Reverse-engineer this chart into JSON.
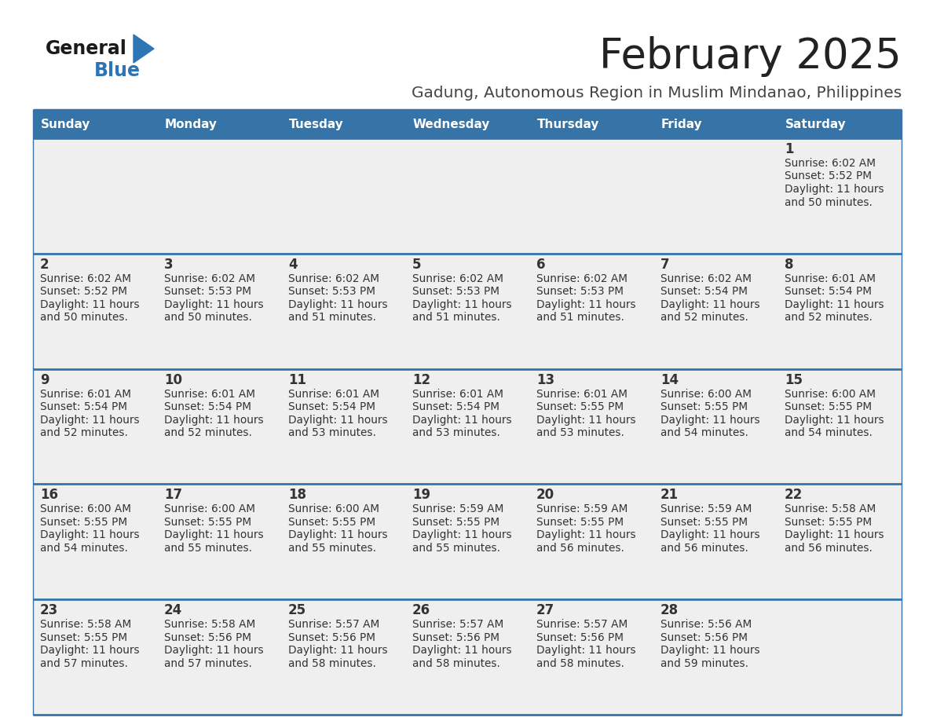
{
  "title": "February 2025",
  "subtitle": "Gadung, Autonomous Region in Muslim Mindanao, Philippines",
  "days_of_week": [
    "Sunday",
    "Monday",
    "Tuesday",
    "Wednesday",
    "Thursday",
    "Friday",
    "Saturday"
  ],
  "header_bg": "#3674a8",
  "header_text": "#FFFFFF",
  "cell_bg": "#EFEFEF",
  "border_color": "#3674a8",
  "text_color": "#333333",
  "title_color": "#222222",
  "subtitle_color": "#444444",
  "logo_general_color": "#1a1a1a",
  "logo_blue_color": "#2E75B6",
  "calendar": [
    [
      null,
      null,
      null,
      null,
      null,
      null,
      {
        "day": 1,
        "sunrise": "6:02 AM",
        "sunset": "5:52 PM",
        "daylight": "11 hours and 50 minutes"
      }
    ],
    [
      {
        "day": 2,
        "sunrise": "6:02 AM",
        "sunset": "5:52 PM",
        "daylight": "11 hours and 50 minutes"
      },
      {
        "day": 3,
        "sunrise": "6:02 AM",
        "sunset": "5:53 PM",
        "daylight": "11 hours and 50 minutes"
      },
      {
        "day": 4,
        "sunrise": "6:02 AM",
        "sunset": "5:53 PM",
        "daylight": "11 hours and 51 minutes"
      },
      {
        "day": 5,
        "sunrise": "6:02 AM",
        "sunset": "5:53 PM",
        "daylight": "11 hours and 51 minutes"
      },
      {
        "day": 6,
        "sunrise": "6:02 AM",
        "sunset": "5:53 PM",
        "daylight": "11 hours and 51 minutes"
      },
      {
        "day": 7,
        "sunrise": "6:02 AM",
        "sunset": "5:54 PM",
        "daylight": "11 hours and 52 minutes"
      },
      {
        "day": 8,
        "sunrise": "6:01 AM",
        "sunset": "5:54 PM",
        "daylight": "11 hours and 52 minutes"
      }
    ],
    [
      {
        "day": 9,
        "sunrise": "6:01 AM",
        "sunset": "5:54 PM",
        "daylight": "11 hours and 52 minutes"
      },
      {
        "day": 10,
        "sunrise": "6:01 AM",
        "sunset": "5:54 PM",
        "daylight": "11 hours and 52 minutes"
      },
      {
        "day": 11,
        "sunrise": "6:01 AM",
        "sunset": "5:54 PM",
        "daylight": "11 hours and 53 minutes"
      },
      {
        "day": 12,
        "sunrise": "6:01 AM",
        "sunset": "5:54 PM",
        "daylight": "11 hours and 53 minutes"
      },
      {
        "day": 13,
        "sunrise": "6:01 AM",
        "sunset": "5:55 PM",
        "daylight": "11 hours and 53 minutes"
      },
      {
        "day": 14,
        "sunrise": "6:00 AM",
        "sunset": "5:55 PM",
        "daylight": "11 hours and 54 minutes"
      },
      {
        "day": 15,
        "sunrise": "6:00 AM",
        "sunset": "5:55 PM",
        "daylight": "11 hours and 54 minutes"
      }
    ],
    [
      {
        "day": 16,
        "sunrise": "6:00 AM",
        "sunset": "5:55 PM",
        "daylight": "11 hours and 54 minutes"
      },
      {
        "day": 17,
        "sunrise": "6:00 AM",
        "sunset": "5:55 PM",
        "daylight": "11 hours and 55 minutes"
      },
      {
        "day": 18,
        "sunrise": "6:00 AM",
        "sunset": "5:55 PM",
        "daylight": "11 hours and 55 minutes"
      },
      {
        "day": 19,
        "sunrise": "5:59 AM",
        "sunset": "5:55 PM",
        "daylight": "11 hours and 55 minutes"
      },
      {
        "day": 20,
        "sunrise": "5:59 AM",
        "sunset": "5:55 PM",
        "daylight": "11 hours and 56 minutes"
      },
      {
        "day": 21,
        "sunrise": "5:59 AM",
        "sunset": "5:55 PM",
        "daylight": "11 hours and 56 minutes"
      },
      {
        "day": 22,
        "sunrise": "5:58 AM",
        "sunset": "5:55 PM",
        "daylight": "11 hours and 56 minutes"
      }
    ],
    [
      {
        "day": 23,
        "sunrise": "5:58 AM",
        "sunset": "5:55 PM",
        "daylight": "11 hours and 57 minutes"
      },
      {
        "day": 24,
        "sunrise": "5:58 AM",
        "sunset": "5:56 PM",
        "daylight": "11 hours and 57 minutes"
      },
      {
        "day": 25,
        "sunrise": "5:57 AM",
        "sunset": "5:56 PM",
        "daylight": "11 hours and 58 minutes"
      },
      {
        "day": 26,
        "sunrise": "5:57 AM",
        "sunset": "5:56 PM",
        "daylight": "11 hours and 58 minutes"
      },
      {
        "day": 27,
        "sunrise": "5:57 AM",
        "sunset": "5:56 PM",
        "daylight": "11 hours and 58 minutes"
      },
      {
        "day": 28,
        "sunrise": "5:56 AM",
        "sunset": "5:56 PM",
        "daylight": "11 hours and 59 minutes"
      },
      null
    ]
  ]
}
